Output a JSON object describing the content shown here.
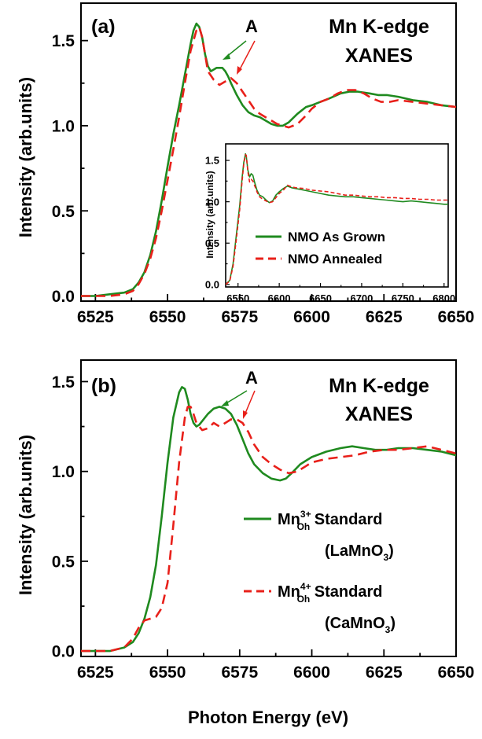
{
  "colors": {
    "green": "#1f8a1f",
    "red": "#e8201a",
    "axis": "#000000"
  },
  "chart_data": [
    {
      "type": "line",
      "panel_label": "(a)",
      "title_line1": "Mn K-edge",
      "title_line2": "XANES",
      "peak_label": "A",
      "xlim": [
        6520,
        6650
      ],
      "ylim": [
        -0.03,
        1.72
      ],
      "xticks": [
        "6525",
        "6550",
        "6575",
        "6600",
        "6625",
        "6650"
      ],
      "yticks": [
        "0.0",
        "0.5",
        "1.0",
        "1.5"
      ],
      "ylabel": "Intensity (arb.units)",
      "series": [
        {
          "name": "NMO As Grown",
          "style": "solid",
          "color": "#1f8a1f",
          "x": [
            6520,
            6525,
            6530,
            6535,
            6538,
            6540,
            6542,
            6544,
            6546,
            6548,
            6550,
            6552,
            6554,
            6556,
            6558,
            6559,
            6560,
            6561,
            6562,
            6563,
            6564,
            6565,
            6566,
            6567,
            6568,
            6569,
            6570,
            6571,
            6572,
            6574,
            6576,
            6578,
            6580,
            6582,
            6584,
            6586,
            6588,
            6590,
            6592,
            6595,
            6598,
            6600,
            6603,
            6606,
            6610,
            6613,
            6616,
            6620,
            6623,
            6626,
            6630,
            6635,
            6640,
            6645,
            6650
          ],
          "y": [
            0.0,
            0.0,
            0.01,
            0.02,
            0.04,
            0.08,
            0.14,
            0.24,
            0.38,
            0.56,
            0.76,
            0.95,
            1.12,
            1.3,
            1.48,
            1.56,
            1.6,
            1.58,
            1.52,
            1.42,
            1.35,
            1.32,
            1.33,
            1.34,
            1.34,
            1.34,
            1.32,
            1.29,
            1.25,
            1.18,
            1.12,
            1.08,
            1.06,
            1.05,
            1.03,
            1.01,
            1.0,
            1.0,
            1.02,
            1.07,
            1.11,
            1.12,
            1.14,
            1.16,
            1.19,
            1.2,
            1.2,
            1.19,
            1.18,
            1.18,
            1.17,
            1.15,
            1.14,
            1.12,
            1.11
          ]
        },
        {
          "name": "NMO Annealed",
          "style": "dashed",
          "color": "#e8201a",
          "x": [
            6520,
            6525,
            6530,
            6535,
            6538,
            6540,
            6542,
            6544,
            6546,
            6548,
            6550,
            6552,
            6554,
            6556,
            6558,
            6560,
            6561,
            6562,
            6563,
            6564,
            6566,
            6568,
            6570,
            6572,
            6574,
            6576,
            6578,
            6580,
            6582,
            6584,
            6586,
            6588,
            6590,
            6592,
            6595,
            6598,
            6600,
            6603,
            6606,
            6609,
            6612,
            6615,
            6618,
            6621,
            6624,
            6627,
            6630,
            6635,
            6640,
            6645,
            6650
          ],
          "y": [
            0.0,
            0.0,
            0.0,
            0.01,
            0.03,
            0.07,
            0.13,
            0.22,
            0.34,
            0.5,
            0.68,
            0.86,
            1.05,
            1.25,
            1.44,
            1.56,
            1.58,
            1.52,
            1.42,
            1.32,
            1.27,
            1.24,
            1.26,
            1.28,
            1.25,
            1.2,
            1.15,
            1.1,
            1.07,
            1.05,
            1.03,
            1.01,
            1.0,
            0.99,
            1.01,
            1.06,
            1.1,
            1.14,
            1.16,
            1.19,
            1.21,
            1.21,
            1.19,
            1.16,
            1.14,
            1.14,
            1.15,
            1.14,
            1.13,
            1.12,
            1.11
          ]
        }
      ],
      "inset": {
        "xlim": [
          6535,
          6805
        ],
        "ylim": [
          -0.03,
          1.7
        ],
        "xticks": [
          "6550",
          "6600",
          "6650",
          "6700",
          "6750",
          "6800"
        ],
        "yticks": [
          "0.0",
          "0.5",
          "1.0",
          "1.5"
        ],
        "ylabel": "Intensity (arb.units)",
        "legend": [
          "NMO As Grown",
          "NMO Annealed"
        ],
        "series": [
          {
            "style": "solid",
            "color": "#1f8a1f",
            "x": [
              6535,
              6540,
              6544,
              6548,
              6552,
              6555,
              6557,
              6559,
              6560,
              6562,
              6564,
              6566,
              6568,
              6570,
              6573,
              6576,
              6580,
              6584,
              6588,
              6592,
              6596,
              6600,
              6605,
              6610,
              6615,
              6620,
              6630,
              6640,
              6650,
              6660,
              6670,
              6680,
              6690,
              6700,
              6710,
              6720,
              6730,
              6740,
              6750,
              6760,
              6770,
              6780,
              6790,
              6800,
              6805
            ],
            "y": [
              0.0,
              0.05,
              0.25,
              0.6,
              0.95,
              1.3,
              1.48,
              1.58,
              1.55,
              1.38,
              1.3,
              1.34,
              1.32,
              1.24,
              1.14,
              1.08,
              1.06,
              1.02,
              0.99,
              1.01,
              1.08,
              1.12,
              1.16,
              1.19,
              1.17,
              1.16,
              1.14,
              1.12,
              1.1,
              1.08,
              1.07,
              1.06,
              1.06,
              1.05,
              1.04,
              1.03,
              1.02,
              1.01,
              1.0,
              1.01,
              1.0,
              0.99,
              0.98,
              0.97,
              0.97
            ]
          },
          {
            "style": "dashed",
            "color": "#e8201a",
            "x": [
              6535,
              6540,
              6544,
              6548,
              6552,
              6555,
              6557,
              6559,
              6560,
              6562,
              6564,
              6566,
              6568,
              6570,
              6573,
              6576,
              6580,
              6584,
              6588,
              6592,
              6596,
              6600,
              6605,
              6610,
              6615,
              6620,
              6630,
              6640,
              6650,
              6660,
              6670,
              6680,
              6690,
              6700,
              6710,
              6720,
              6730,
              6740,
              6750,
              6760,
              6770,
              6780,
              6790,
              6800,
              6805
            ],
            "y": [
              0.0,
              0.04,
              0.22,
              0.55,
              0.9,
              1.26,
              1.46,
              1.57,
              1.56,
              1.36,
              1.24,
              1.27,
              1.25,
              1.2,
              1.12,
              1.06,
              1.03,
              1.01,
              0.99,
              1.0,
              1.05,
              1.1,
              1.14,
              1.2,
              1.18,
              1.17,
              1.16,
              1.14,
              1.13,
              1.12,
              1.1,
              1.08,
              1.08,
              1.07,
              1.06,
              1.06,
              1.05,
              1.05,
              1.04,
              1.04,
              1.03,
              1.03,
              1.02,
              1.02,
              1.02
            ]
          }
        ]
      }
    },
    {
      "type": "line",
      "panel_label": "(b)",
      "title_line1": "Mn K-edge",
      "title_line2": "XANES",
      "peak_label": "A",
      "xlim": [
        6520,
        6650
      ],
      "ylim": [
        -0.03,
        1.62
      ],
      "xticks": [
        "6525",
        "6550",
        "6575",
        "6600",
        "6625",
        "6650"
      ],
      "yticks": [
        "0.0",
        "0.5",
        "1.0",
        "1.5"
      ],
      "xlabel": "Photon Energy (eV)",
      "ylabel": "Intensity (arb.units)",
      "series": [
        {
          "name_main": "Mn",
          "name_sup": "3+",
          "name_sub": "Oh",
          "name_suffix": " Standard",
          "compound_main": "LaMnO",
          "compound_sub": "3",
          "style": "solid",
          "color": "#1f8a1f",
          "x": [
            6520,
            6525,
            6530,
            6535,
            6538,
            6540,
            6542,
            6544,
            6546,
            6548,
            6550,
            6552,
            6554,
            6555,
            6556,
            6557,
            6558,
            6559,
            6560,
            6561,
            6562,
            6564,
            6566,
            6568,
            6570,
            6572,
            6574,
            6576,
            6578,
            6580,
            6583,
            6586,
            6589,
            6591,
            6593,
            6596,
            6600,
            6605,
            6610,
            6614,
            6618,
            6622,
            6626,
            6630,
            6635,
            6640,
            6645,
            6650
          ],
          "y": [
            0.0,
            0.0,
            0.0,
            0.02,
            0.05,
            0.1,
            0.18,
            0.3,
            0.48,
            0.75,
            1.05,
            1.3,
            1.44,
            1.47,
            1.46,
            1.4,
            1.32,
            1.27,
            1.25,
            1.26,
            1.28,
            1.32,
            1.35,
            1.36,
            1.35,
            1.32,
            1.26,
            1.18,
            1.1,
            1.04,
            0.99,
            0.96,
            0.95,
            0.96,
            0.99,
            1.04,
            1.08,
            1.11,
            1.13,
            1.14,
            1.13,
            1.12,
            1.12,
            1.13,
            1.13,
            1.12,
            1.11,
            1.09
          ]
        },
        {
          "name_main": "Mn",
          "name_sup": "4+",
          "name_sub": "Oh",
          "name_suffix": " Standard",
          "compound_main": "CaMnO",
          "compound_sub": "3",
          "style": "dashed",
          "color": "#e8201a",
          "x": [
            6520,
            6525,
            6530,
            6535,
            6538,
            6540,
            6542,
            6544,
            6546,
            6548,
            6550,
            6552,
            6554,
            6556,
            6557,
            6558,
            6559,
            6560,
            6562,
            6564,
            6566,
            6568,
            6570,
            6572,
            6574,
            6576,
            6578,
            6580,
            6583,
            6586,
            6589,
            6592,
            6595,
            6598,
            6600,
            6605,
            6610,
            6615,
            6620,
            6625,
            6630,
            6635,
            6640,
            6645,
            6650
          ],
          "y": [
            0.0,
            0.0,
            0.0,
            0.02,
            0.07,
            0.13,
            0.17,
            0.18,
            0.19,
            0.24,
            0.38,
            0.7,
            1.05,
            1.3,
            1.36,
            1.36,
            1.32,
            1.27,
            1.23,
            1.24,
            1.27,
            1.25,
            1.27,
            1.29,
            1.29,
            1.27,
            1.22,
            1.15,
            1.08,
            1.04,
            1.01,
            0.99,
            1.0,
            1.03,
            1.05,
            1.07,
            1.08,
            1.09,
            1.11,
            1.12,
            1.12,
            1.13,
            1.14,
            1.12,
            1.1
          ]
        }
      ]
    }
  ]
}
